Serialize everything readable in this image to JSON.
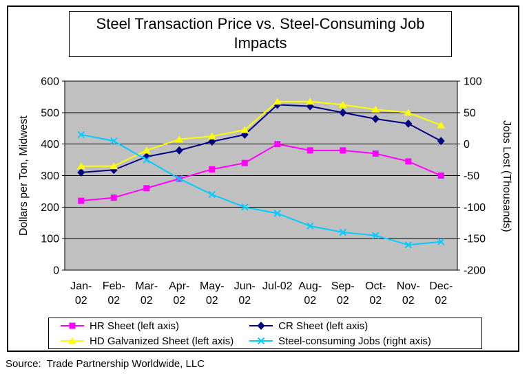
{
  "title": "Steel Transaction Price vs. Steel-Consuming Job Impacts",
  "title_lines": [
    "Steel Transaction Price vs. Steel-Consuming Job",
    "Impacts"
  ],
  "axes": {
    "left_title": "Dollars per Ton, Midwest",
    "right_title": "Jobs Lost (Thousands)"
  },
  "source_note": "Source:  Trade Partnership Worldwide, LLC",
  "chart_data": {
    "type": "line",
    "title": "Steel Transaction Price vs. Steel-Consuming Job Impacts",
    "categories": [
      [
        "Jan-",
        "02"
      ],
      [
        "Feb-",
        "02"
      ],
      [
        "Mar-",
        "02"
      ],
      [
        "Apr-",
        "02"
      ],
      [
        "May-",
        "02"
      ],
      [
        "Jun-",
        "02"
      ],
      [
        "Jul-02"
      ],
      [
        "Aug-",
        "02"
      ],
      [
        "Sep-",
        "02"
      ],
      [
        "Oct-",
        "02"
      ],
      [
        "Nov-",
        "02"
      ],
      [
        "Dec-",
        "02"
      ]
    ],
    "left_axis": {
      "label": "Dollars per Ton, Midwest",
      "range": [
        0,
        600
      ],
      "ticks": [
        600,
        500,
        400,
        300,
        200,
        100,
        0
      ]
    },
    "right_axis": {
      "label": "Jobs Lost (Thousands)",
      "range": [
        -200,
        100
      ],
      "ticks": [
        100,
        50,
        0,
        -50,
        -100,
        -150,
        -200
      ]
    },
    "plot_background": "#c0c0c0",
    "grid": "horizontal",
    "legend_position": "bottom",
    "series": [
      {
        "name": "HR Sheet (left axis)",
        "axis": "left",
        "color": "#ff00ff",
        "marker": "square",
        "values": [
          220,
          230,
          260,
          290,
          320,
          340,
          400,
          380,
          380,
          370,
          345,
          300
        ]
      },
      {
        "name": "CR Sheet (left axis)",
        "axis": "left",
        "color": "#000080",
        "marker": "diamond",
        "values": [
          310,
          318,
          360,
          380,
          408,
          430,
          525,
          520,
          500,
          480,
          465,
          410
        ]
      },
      {
        "name": "HD Galvanized Sheet (left axis)",
        "axis": "left",
        "color": "#ffff00",
        "marker": "triangle",
        "values": [
          330,
          330,
          380,
          415,
          425,
          445,
          535,
          535,
          525,
          510,
          500,
          460
        ]
      },
      {
        "name": "Steel-consuming Jobs (right axis)",
        "axis": "right",
        "color": "#00ccff",
        "marker": "x",
        "values": [
          15,
          5,
          -25,
          -55,
          -80,
          -100,
          -110,
          -130,
          -140,
          -145,
          -160,
          -155
        ]
      }
    ]
  }
}
